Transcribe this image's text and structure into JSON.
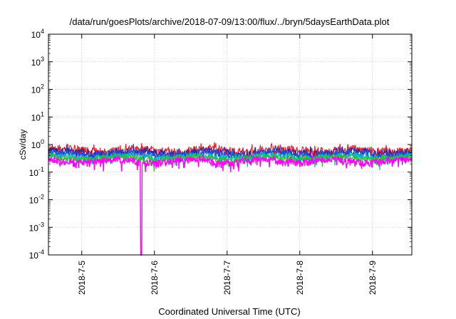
{
  "chart_data": {
    "type": "line",
    "title": "/data/run/goesPlots/archive/2018-07-09/13:00/flux/../bryn/5daysEarthData.plot",
    "xlabel": "Coordinated Universal Time (UTC)",
    "ylabel": "cSv/day",
    "y_scale": "log",
    "ylim": [
      0.0001,
      10000
    ],
    "y_ticks": [
      {
        "value": 0.0001,
        "base": "10",
        "exp": "-4"
      },
      {
        "value": 0.001,
        "base": "10",
        "exp": "-3"
      },
      {
        "value": 0.01,
        "base": "10",
        "exp": "-2"
      },
      {
        "value": 0.1,
        "base": "10",
        "exp": "-1"
      },
      {
        "value": 1,
        "base": "10",
        "exp": "0"
      },
      {
        "value": 10,
        "base": "10",
        "exp": "1"
      },
      {
        "value": 100,
        "base": "10",
        "exp": "2"
      },
      {
        "value": 1000,
        "base": "10",
        "exp": "3"
      },
      {
        "value": 10000,
        "base": "10",
        "exp": "4"
      }
    ],
    "xlim": [
      "2018-07-04 13:00",
      "2018-07-09 13:00"
    ],
    "x_ticks": [
      "2018-7-5",
      "2018-7-6",
      "2018-7-7",
      "2018-7-8",
      "2018-7-9"
    ],
    "grid": true,
    "legend": "none",
    "series": [
      {
        "color": "#e0202a",
        "mean": 0.62,
        "amplitude": 0.22,
        "spike_rate": 0.1
      },
      {
        "color": "#3a1f9e",
        "mean": 0.52,
        "amplitude": 0.18,
        "spike_rate": 0.06
      },
      {
        "color": "#2050d8",
        "mean": 0.44,
        "amplitude": 0.14,
        "spike_rate": 0.05
      },
      {
        "color": "#00c0c0",
        "mean": 0.36,
        "amplitude": 0.1,
        "spike_rate": 0.04
      },
      {
        "color": "#30c030",
        "mean": 0.32,
        "amplitude": 0.08,
        "spike_rate": 0.03
      },
      {
        "color": "#ff00ff",
        "mean": 0.25,
        "amplitude": 0.07,
        "spike_rate": 0.08
      }
    ],
    "features": [
      {
        "series_color": "#ff00ff",
        "time": "2018-07-05 19:40",
        "min_value": 0.0001,
        "description": "deep dip"
      }
    ]
  }
}
